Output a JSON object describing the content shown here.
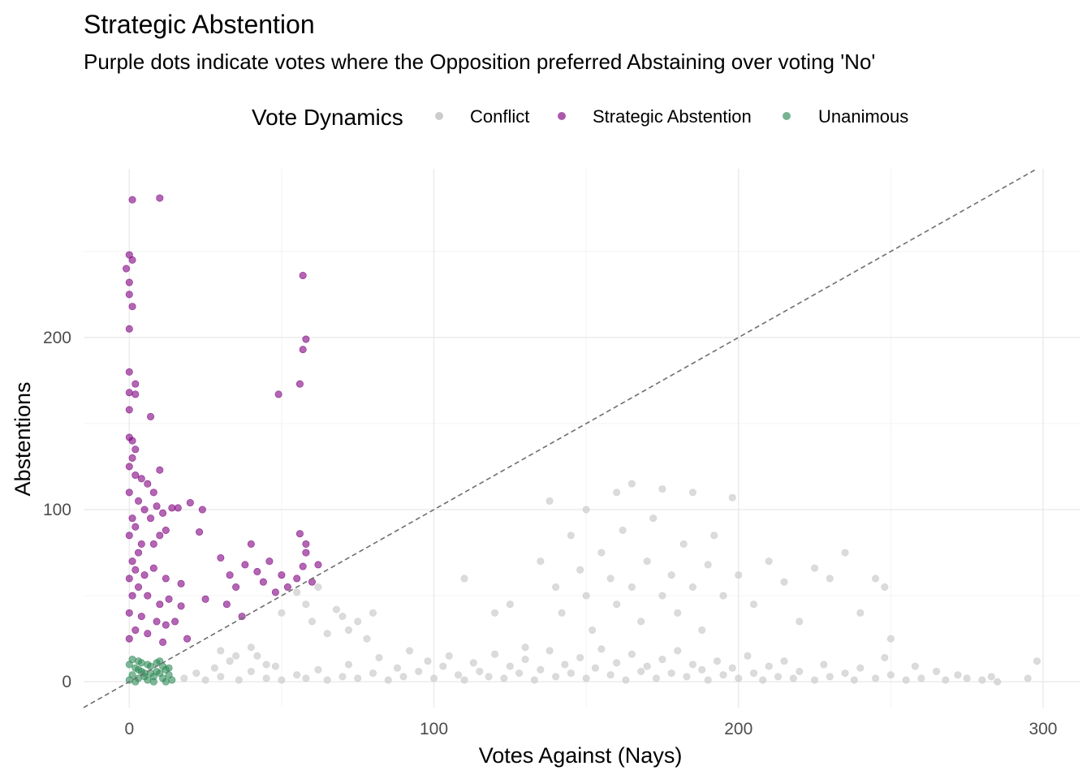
{
  "chart_data": {
    "type": "scatter",
    "title": "Strategic Abstention",
    "subtitle": "Purple dots indicate votes where the Opposition preferred Abstaining over voting 'No'",
    "xlabel": "Votes Against (Nays)",
    "ylabel": "Abstentions",
    "xlim": [
      -15,
      312
    ],
    "ylim": [
      -15,
      298
    ],
    "xticks": [
      0,
      100,
      200,
      300
    ],
    "yticks": [
      0,
      100,
      200
    ],
    "grid": true,
    "reference_line": "y = x (dashed)",
    "legend": {
      "title": "Vote Dynamics",
      "placement": "top"
    },
    "series": [
      {
        "name": "Conflict",
        "color": "#cccccc",
        "points": [
          [
            18,
            2
          ],
          [
            22,
            5
          ],
          [
            25,
            1
          ],
          [
            28,
            8
          ],
          [
            30,
            3
          ],
          [
            33,
            12
          ],
          [
            36,
            1
          ],
          [
            40,
            6
          ],
          [
            42,
            15
          ],
          [
            45,
            2
          ],
          [
            48,
            9
          ],
          [
            50,
            1
          ],
          [
            55,
            4
          ],
          [
            58,
            2
          ],
          [
            62,
            7
          ],
          [
            65,
            1
          ],
          [
            70,
            3
          ],
          [
            72,
            10
          ],
          [
            75,
            2
          ],
          [
            80,
            5
          ],
          [
            82,
            14
          ],
          [
            85,
            1
          ],
          [
            88,
            8
          ],
          [
            90,
            3
          ],
          [
            92,
            18
          ],
          [
            95,
            6
          ],
          [
            98,
            12
          ],
          [
            100,
            2
          ],
          [
            103,
            9
          ],
          [
            105,
            15
          ],
          [
            108,
            4
          ],
          [
            110,
            1
          ],
          [
            113,
            11
          ],
          [
            115,
            6
          ],
          [
            118,
            3
          ],
          [
            120,
            16
          ],
          [
            123,
            2
          ],
          [
            125,
            9
          ],
          [
            128,
            5
          ],
          [
            130,
            13
          ],
          [
            133,
            1
          ],
          [
            135,
            7
          ],
          [
            138,
            18
          ],
          [
            140,
            3
          ],
          [
            143,
            10
          ],
          [
            145,
            5
          ],
          [
            148,
            14
          ],
          [
            150,
            2
          ],
          [
            153,
            8
          ],
          [
            155,
            19
          ],
          [
            158,
            4
          ],
          [
            160,
            11
          ],
          [
            163,
            1
          ],
          [
            165,
            16
          ],
          [
            168,
            6
          ],
          [
            170,
            9
          ],
          [
            173,
            2
          ],
          [
            175,
            13
          ],
          [
            178,
            5
          ],
          [
            180,
            18
          ],
          [
            183,
            3
          ],
          [
            185,
            10
          ],
          [
            188,
            7
          ],
          [
            190,
            1
          ],
          [
            193,
            12
          ],
          [
            195,
            4
          ],
          [
            198,
            8
          ],
          [
            200,
            2
          ],
          [
            203,
            15
          ],
          [
            205,
            5
          ],
          [
            208,
            1
          ],
          [
            210,
            9
          ],
          [
            213,
            3
          ],
          [
            215,
            12
          ],
          [
            218,
            2
          ],
          [
            220,
            6
          ],
          [
            225,
            1
          ],
          [
            228,
            10
          ],
          [
            230,
            3
          ],
          [
            235,
            5
          ],
          [
            238,
            1
          ],
          [
            240,
            8
          ],
          [
            245,
            2
          ],
          [
            248,
            14
          ],
          [
            250,
            4
          ],
          [
            255,
            1
          ],
          [
            258,
            9
          ],
          [
            260,
            2
          ],
          [
            265,
            6
          ],
          [
            268,
            1
          ],
          [
            272,
            4
          ],
          [
            275,
            2
          ],
          [
            280,
            1
          ],
          [
            283,
            3
          ],
          [
            285,
            0
          ],
          [
            295,
            2
          ],
          [
            298,
            12
          ],
          [
            135,
            70
          ],
          [
            138,
            105
          ],
          [
            140,
            55
          ],
          [
            142,
            40
          ],
          [
            145,
            85
          ],
          [
            148,
            65
          ],
          [
            150,
            50
          ],
          [
            150,
            100
          ],
          [
            152,
            30
          ],
          [
            155,
            75
          ],
          [
            158,
            60
          ],
          [
            160,
            45
          ],
          [
            160,
            110
          ],
          [
            162,
            88
          ],
          [
            165,
            55
          ],
          [
            165,
            115
          ],
          [
            168,
            35
          ],
          [
            170,
            70
          ],
          [
            172,
            95
          ],
          [
            175,
            50
          ],
          [
            175,
            112
          ],
          [
            178,
            62
          ],
          [
            180,
            40
          ],
          [
            182,
            80
          ],
          [
            185,
            55
          ],
          [
            185,
            110
          ],
          [
            188,
            30
          ],
          [
            190,
            68
          ],
          [
            192,
            85
          ],
          [
            195,
            50
          ],
          [
            198,
            107
          ],
          [
            200,
            62
          ],
          [
            205,
            45
          ],
          [
            210,
            70
          ],
          [
            215,
            58
          ],
          [
            220,
            35
          ],
          [
            225,
            66
          ],
          [
            230,
            60
          ],
          [
            240,
            40
          ],
          [
            245,
            60
          ],
          [
            248,
            55
          ],
          [
            250,
            25
          ],
          [
            235,
            75
          ],
          [
            120,
            40
          ],
          [
            110,
            60
          ],
          [
            130,
            20
          ],
          [
            125,
            45
          ],
          [
            50,
            40
          ],
          [
            55,
            52
          ],
          [
            58,
            45
          ],
          [
            60,
            35
          ],
          [
            62,
            55
          ],
          [
            65,
            28
          ],
          [
            68,
            42
          ],
          [
            70,
            38
          ],
          [
            72,
            30
          ],
          [
            75,
            35
          ],
          [
            80,
            40
          ],
          [
            78,
            25
          ],
          [
            40,
            20
          ],
          [
            35,
            15
          ],
          [
            30,
            18
          ],
          [
            45,
            10
          ]
        ]
      },
      {
        "name": "Strategic Abstention",
        "color": "#800080",
        "points": [
          [
            1,
            280
          ],
          [
            10,
            281
          ],
          [
            0,
            248
          ],
          [
            1,
            245
          ],
          [
            -1,
            240
          ],
          [
            0,
            232
          ],
          [
            0,
            225
          ],
          [
            1,
            218
          ],
          [
            0,
            205
          ],
          [
            0,
            180
          ],
          [
            2,
            173
          ],
          [
            0,
            168
          ],
          [
            2,
            167
          ],
          [
            0,
            158
          ],
          [
            7,
            154
          ],
          [
            0,
            142
          ],
          [
            1,
            140
          ],
          [
            2,
            135
          ],
          [
            1,
            130
          ],
          [
            0,
            125
          ],
          [
            2,
            120
          ],
          [
            4,
            118
          ],
          [
            6,
            115
          ],
          [
            8,
            110
          ],
          [
            10,
            123
          ],
          [
            0,
            110
          ],
          [
            3,
            105
          ],
          [
            5,
            100
          ],
          [
            7,
            95
          ],
          [
            9,
            102
          ],
          [
            11,
            98
          ],
          [
            12,
            88
          ],
          [
            14,
            101
          ],
          [
            16,
            101
          ],
          [
            20,
            104
          ],
          [
            24,
            100
          ],
          [
            23,
            87
          ],
          [
            1,
            95
          ],
          [
            2,
            90
          ],
          [
            0,
            85
          ],
          [
            4,
            80
          ],
          [
            3,
            75
          ],
          [
            8,
            80
          ],
          [
            10,
            85
          ],
          [
            1,
            70
          ],
          [
            2,
            65
          ],
          [
            0,
            60
          ],
          [
            5,
            62
          ],
          [
            8,
            66
          ],
          [
            12,
            60
          ],
          [
            3,
            55
          ],
          [
            1,
            50
          ],
          [
            6,
            50
          ],
          [
            10,
            45
          ],
          [
            13,
            48
          ],
          [
            17,
            57
          ],
          [
            0,
            40
          ],
          [
            4,
            38
          ],
          [
            9,
            35
          ],
          [
            12,
            33
          ],
          [
            15,
            35
          ],
          [
            2,
            30
          ],
          [
            6,
            28
          ],
          [
            0,
            25
          ],
          [
            11,
            23
          ],
          [
            19,
            25
          ],
          [
            17,
            44
          ],
          [
            25,
            48
          ],
          [
            30,
            72
          ],
          [
            33,
            62
          ],
          [
            35,
            55
          ],
          [
            38,
            68
          ],
          [
            40,
            80
          ],
          [
            42,
            64
          ],
          [
            44,
            58
          ],
          [
            46,
            70
          ],
          [
            48,
            52
          ],
          [
            50,
            62
          ],
          [
            52,
            55
          ],
          [
            55,
            60
          ],
          [
            57,
            67
          ],
          [
            58,
            75
          ],
          [
            60,
            58
          ],
          [
            62,
            68
          ],
          [
            37,
            38
          ],
          [
            32,
            45
          ],
          [
            49,
            167
          ],
          [
            57,
            193
          ],
          [
            58,
            199
          ],
          [
            56,
            173
          ],
          [
            57,
            236
          ],
          [
            56,
            86
          ],
          [
            58,
            80
          ]
        ]
      },
      {
        "name": "Unanimous",
        "color": "#2e8b57",
        "points": [
          [
            0,
            1
          ],
          [
            1,
            4
          ],
          [
            2,
            8
          ],
          [
            3,
            2
          ],
          [
            4,
            11
          ],
          [
            5,
            5
          ],
          [
            6,
            1
          ],
          [
            7,
            9
          ],
          [
            8,
            3
          ],
          [
            9,
            6
          ],
          [
            10,
            12
          ],
          [
            11,
            2
          ],
          [
            12,
            7
          ],
          [
            13,
            4
          ],
          [
            14,
            1
          ],
          [
            0,
            10
          ],
          [
            2,
            0
          ],
          [
            4,
            6
          ],
          [
            6,
            10
          ],
          [
            8,
            0
          ],
          [
            10,
            5
          ],
          [
            12,
            0
          ],
          [
            1,
            13
          ],
          [
            3,
            12
          ],
          [
            5,
            3
          ],
          [
            7,
            5
          ],
          [
            9,
            11
          ],
          [
            11,
            9
          ],
          [
            13,
            8
          ],
          [
            3,
            7
          ]
        ]
      }
    ]
  }
}
